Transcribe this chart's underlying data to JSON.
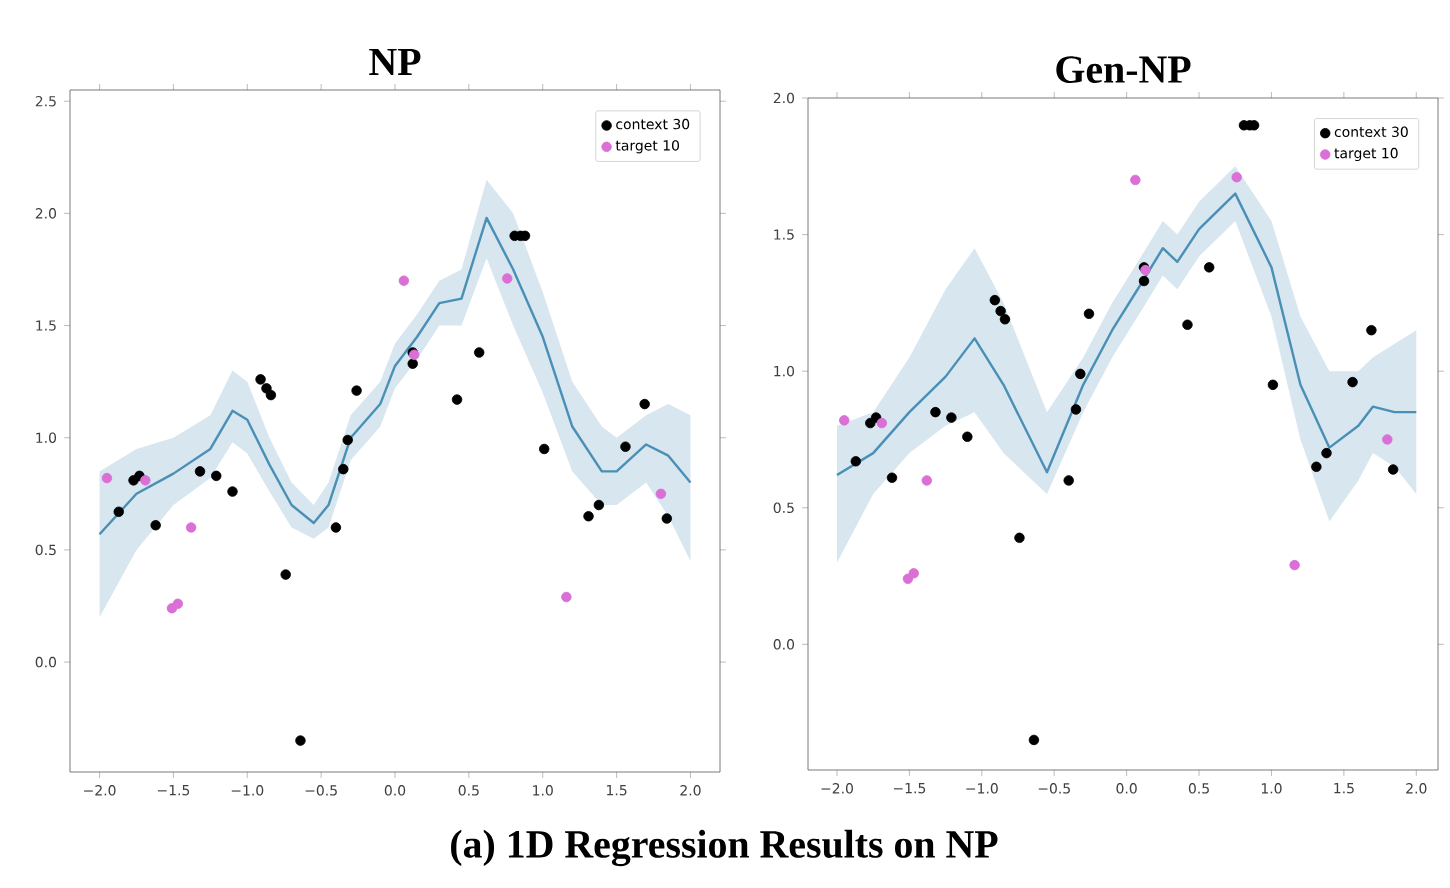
{
  "chart_data": [
    {
      "type": "scatter",
      "title": "NP",
      "legend": "top right",
      "annotations": [
        "(a) 1D Regression Results on NP"
      ],
      "xlim": [
        -2.2,
        2.2
      ],
      "ylim": [
        -0.49,
        2.55
      ],
      "xticks": [
        {
          "value": -2.0,
          "label": "−2.0"
        },
        {
          "value": -1.5,
          "label": "−1.5"
        },
        {
          "value": -1.0,
          "label": "−1.0"
        },
        {
          "value": -0.5,
          "label": "−0.5"
        },
        {
          "value": 0.0,
          "label": "0.0"
        },
        {
          "value": 0.5,
          "label": "0.5"
        },
        {
          "value": 1.0,
          "label": "1.0"
        },
        {
          "value": 1.5,
          "label": "1.5"
        },
        {
          "value": 2.0,
          "label": "2.0"
        }
      ],
      "yticks": [
        {
          "value": 0.0,
          "label": "0.0"
        },
        {
          "value": 0.5,
          "label": "0.5"
        },
        {
          "value": 1.0,
          "label": "1.0"
        },
        {
          "value": 1.5,
          "label": "1.5"
        },
        {
          "value": 2.0,
          "label": "2.0"
        },
        {
          "value": 2.5,
          "label": "2.5"
        }
      ],
      "series": [
        {
          "type": "line",
          "color": "#4a8fb5",
          "x": [
            -2,
            -1.75,
            -1.5,
            -1.25,
            -1.1,
            -1.0,
            -0.85,
            -0.7,
            -0.55,
            -0.45,
            -0.3,
            -0.1,
            0,
            0.15,
            0.3,
            0.45,
            0.62,
            0.8,
            1.0,
            1.2,
            1.4,
            1.5,
            1.7,
            1.85,
            2.0
          ],
          "values": [
            0.57,
            0.75,
            0.84,
            0.95,
            1.12,
            1.08,
            0.88,
            0.7,
            0.62,
            0.7,
            1.0,
            1.15,
            1.32,
            1.45,
            1.6,
            1.62,
            1.98,
            1.75,
            1.45,
            1.05,
            0.85,
            0.85,
            0.97,
            0.92,
            0.8
          ],
          "upper": [
            0.85,
            0.95,
            1.0,
            1.1,
            1.3,
            1.25,
            1.0,
            0.8,
            0.7,
            0.8,
            1.1,
            1.25,
            1.42,
            1.55,
            1.7,
            1.75,
            2.15,
            2.0,
            1.65,
            1.25,
            1.05,
            1.0,
            1.1,
            1.15,
            1.1
          ],
          "lower": [
            0.2,
            0.5,
            0.7,
            0.82,
            0.98,
            0.93,
            0.76,
            0.6,
            0.55,
            0.6,
            0.9,
            1.05,
            1.22,
            1.35,
            1.5,
            1.5,
            1.8,
            1.5,
            1.2,
            0.85,
            0.7,
            0.7,
            0.8,
            0.65,
            0.45
          ]
        },
        {
          "name": "context 30",
          "color": "#000000",
          "x": [
            -1.87,
            -1.77,
            -1.73,
            -1.62,
            -1.32,
            -1.21,
            -1.1,
            -0.91,
            -0.87,
            -0.84,
            -0.74,
            -0.64,
            -0.4,
            -0.35,
            -0.32,
            -0.26,
            0.12,
            0.12,
            0.42,
            0.57,
            0.81,
            0.85,
            0.88,
            1.01,
            1.31,
            1.38,
            1.56,
            1.69,
            1.84
          ],
          "values": [
            0.67,
            0.81,
            0.83,
            0.61,
            0.85,
            0.83,
            0.76,
            1.26,
            1.22,
            1.19,
            0.39,
            -0.35,
            0.6,
            0.86,
            0.99,
            1.21,
            1.38,
            1.33,
            1.17,
            1.38,
            1.9,
            1.9,
            1.9,
            0.95,
            0.65,
            0.7,
            0.96,
            1.15,
            0.64
          ]
        },
        {
          "name": "target 10",
          "color": "#da70d6",
          "x": [
            -1.95,
            -1.69,
            -1.51,
            -1.47,
            -1.38,
            0.06,
            0.13,
            0.76,
            1.16,
            1.8
          ],
          "values": [
            0.82,
            0.81,
            0.24,
            0.26,
            0.6,
            1.7,
            1.37,
            1.71,
            0.29,
            0.75
          ]
        }
      ]
    },
    {
      "type": "scatter",
      "title": "Gen-NP",
      "legend": "top right",
      "xlim": [
        -2.2,
        2.15
      ],
      "ylim": [
        -0.46,
        2.0
      ],
      "xticks": [
        {
          "value": -2.0,
          "label": "−2.0"
        },
        {
          "value": -1.5,
          "label": "−1.5"
        },
        {
          "value": -1.0,
          "label": "−1.0"
        },
        {
          "value": -0.5,
          "label": "−0.5"
        },
        {
          "value": 0.0,
          "label": "0.0"
        },
        {
          "value": 0.5,
          "label": "0.5"
        },
        {
          "value": 1.0,
          "label": "1.0"
        },
        {
          "value": 1.5,
          "label": "1.5"
        },
        {
          "value": 2.0,
          "label": "2.0"
        }
      ],
      "yticks": [
        {
          "value": 0.0,
          "label": "0.0"
        },
        {
          "value": 0.5,
          "label": "0.5"
        },
        {
          "value": 1.0,
          "label": "1.0"
        },
        {
          "value": 1.5,
          "label": "1.5"
        },
        {
          "value": 2.0,
          "label": "2.0"
        }
      ],
      "series": [
        {
          "type": "line",
          "color": "#4a8fb5",
          "x": [
            -2,
            -1.75,
            -1.5,
            -1.25,
            -1.05,
            -0.85,
            -0.55,
            -0.3,
            -0.1,
            0.1,
            0.25,
            0.35,
            0.5,
            0.75,
            1.0,
            1.2,
            1.4,
            1.6,
            1.7,
            1.85,
            2.0
          ],
          "values": [
            0.62,
            0.7,
            0.85,
            0.98,
            1.12,
            0.95,
            0.63,
            0.95,
            1.15,
            1.32,
            1.45,
            1.4,
            1.52,
            1.65,
            1.38,
            0.95,
            0.72,
            0.8,
            0.87,
            0.85,
            0.85
          ],
          "upper": [
            0.8,
            0.85,
            1.05,
            1.3,
            1.45,
            1.25,
            0.85,
            1.05,
            1.25,
            1.42,
            1.55,
            1.5,
            1.62,
            1.75,
            1.55,
            1.2,
            1.0,
            1.0,
            1.05,
            1.1,
            1.15
          ],
          "lower": [
            0.3,
            0.55,
            0.7,
            0.8,
            0.85,
            0.7,
            0.55,
            0.85,
            1.05,
            1.22,
            1.35,
            1.3,
            1.42,
            1.55,
            1.2,
            0.75,
            0.45,
            0.6,
            0.7,
            0.65,
            0.55
          ]
        },
        {
          "name": "context 30",
          "color": "#000000",
          "x": [
            -1.87,
            -1.77,
            -1.73,
            -1.62,
            -1.32,
            -1.21,
            -1.1,
            -0.91,
            -0.87,
            -0.84,
            -0.74,
            -0.64,
            -0.4,
            -0.35,
            -0.32,
            -0.26,
            0.12,
            0.12,
            0.42,
            0.57,
            0.81,
            0.85,
            0.88,
            1.01,
            1.31,
            1.38,
            1.56,
            1.69,
            1.84
          ],
          "values": [
            0.67,
            0.81,
            0.83,
            0.61,
            0.85,
            0.83,
            0.76,
            1.26,
            1.22,
            1.19,
            0.39,
            -0.35,
            0.6,
            0.86,
            0.99,
            1.21,
            1.38,
            1.33,
            1.17,
            1.38,
            1.9,
            1.9,
            1.9,
            0.95,
            0.65,
            0.7,
            0.96,
            1.15,
            0.64
          ]
        },
        {
          "name": "target 10",
          "color": "#da70d6",
          "x": [
            -1.95,
            -1.69,
            -1.51,
            -1.47,
            -1.38,
            0.06,
            0.13,
            0.76,
            1.16,
            1.8
          ],
          "values": [
            0.82,
            0.81,
            0.24,
            0.26,
            0.6,
            1.7,
            1.37,
            1.71,
            0.29,
            0.75
          ]
        }
      ]
    }
  ]
}
